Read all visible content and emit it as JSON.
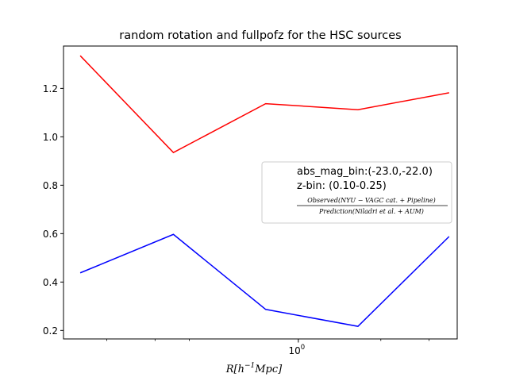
{
  "chart_data": {
    "type": "line",
    "title": "random rotation and fullpofz for the HSC sources",
    "xlabel": "R[h^{-1}Mpc]",
    "xlabel_parts": {
      "pre": "R[h",
      "sup": "−1",
      "post": "Mpc]"
    },
    "ylabel": "",
    "xscale": "log",
    "xlim": [
      0.139,
      3.8
    ],
    "ylim": [
      0.165,
      1.375
    ],
    "x_major_ticks": [
      {
        "value": 1.0,
        "label": "10",
        "sup": "0"
      }
    ],
    "x_minor_ticks": [
      0.2,
      0.3,
      0.4,
      2,
      3
    ],
    "y_ticks": [
      {
        "value": 0.2,
        "label": "0.2"
      },
      {
        "value": 0.4,
        "label": "0.4"
      },
      {
        "value": 0.6,
        "label": "0.6"
      },
      {
        "value": 0.8,
        "label": "0.8"
      },
      {
        "value": 1.0,
        "label": "1.0"
      },
      {
        "value": 1.2,
        "label": "1.2"
      }
    ],
    "grid": false,
    "series": [
      {
        "color": "#ff0000",
        "x": [
          0.16,
          0.35,
          0.76,
          1.65,
          3.55
        ],
        "y": [
          1.335,
          0.935,
          1.137,
          1.112,
          1.182
        ]
      },
      {
        "color": "#0000ff",
        "x": [
          0.16,
          0.35,
          0.76,
          1.65,
          3.55
        ],
        "y": [
          0.438,
          0.597,
          0.287,
          0.217,
          0.588
        ]
      }
    ],
    "legend": {
      "placement": "center-right",
      "lines": [
        "abs_mag_bin:(-23.0,-22.0)",
        "z-bin: (0.10-0.25)"
      ],
      "fraction": {
        "numerator": "Observed(NYU − VAGC cat. + Pipeline)",
        "denominator": "Prediction(Niladri et al. + AUM)"
      }
    }
  }
}
